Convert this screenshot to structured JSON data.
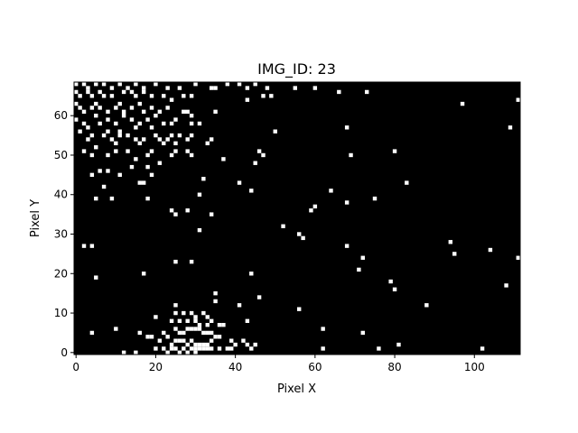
{
  "chart_data": {
    "type": "heatmap",
    "title": "IMG_ID: 23",
    "xlabel": "Pixel X",
    "ylabel": "Pixel Y",
    "xlim": [
      0,
      111
    ],
    "ylim": [
      0,
      68
    ],
    "xticks": [
      "0",
      "20",
      "40",
      "60",
      "80",
      "100"
    ],
    "yticks": [
      "0",
      "10",
      "20",
      "30",
      "40",
      "50",
      "60"
    ],
    "colormap": {
      "0": "#000000",
      "1": "#ffffff"
    },
    "grid": false,
    "points": [
      [
        0,
        68
      ],
      [
        2,
        68
      ],
      [
        3,
        67
      ],
      [
        5,
        68
      ],
      [
        7,
        68
      ],
      [
        9,
        67
      ],
      [
        11,
        68
      ],
      [
        13,
        67
      ],
      [
        15,
        68
      ],
      [
        17,
        67
      ],
      [
        20,
        68
      ],
      [
        23,
        67
      ],
      [
        26,
        67
      ],
      [
        30,
        68
      ],
      [
        34,
        67
      ],
      [
        35,
        67
      ],
      [
        38,
        68
      ],
      [
        41,
        68
      ],
      [
        43,
        67
      ],
      [
        45,
        68
      ],
      [
        48,
        67
      ],
      [
        55,
        67
      ],
      [
        60,
        67
      ],
      [
        66,
        66
      ],
      [
        73,
        66
      ],
      [
        0,
        66
      ],
      [
        1,
        65
      ],
      [
        3,
        66
      ],
      [
        4,
        65
      ],
      [
        6,
        66
      ],
      [
        7,
        65
      ],
      [
        9,
        65
      ],
      [
        12,
        66
      ],
      [
        14,
        66
      ],
      [
        15,
        65
      ],
      [
        17,
        66
      ],
      [
        19,
        65
      ],
      [
        22,
        65
      ],
      [
        24,
        64
      ],
      [
        27,
        65
      ],
      [
        29,
        65
      ],
      [
        43,
        64
      ],
      [
        47,
        65
      ],
      [
        49,
        65
      ],
      [
        97,
        63
      ],
      [
        111,
        64
      ],
      [
        0,
        63
      ],
      [
        1,
        62
      ],
      [
        2,
        61
      ],
      [
        4,
        62
      ],
      [
        5,
        63
      ],
      [
        6,
        62
      ],
      [
        8,
        61
      ],
      [
        10,
        62
      ],
      [
        11,
        63
      ],
      [
        12,
        61
      ],
      [
        14,
        62
      ],
      [
        16,
        63
      ],
      [
        17,
        61
      ],
      [
        19,
        62
      ],
      [
        20,
        60
      ],
      [
        21,
        61
      ],
      [
        23,
        62
      ],
      [
        27,
        61
      ],
      [
        28,
        61
      ],
      [
        29,
        60
      ],
      [
        35,
        61
      ],
      [
        0,
        59
      ],
      [
        2,
        58
      ],
      [
        3,
        57
      ],
      [
        5,
        60
      ],
      [
        6,
        58
      ],
      [
        8,
        59
      ],
      [
        10,
        58
      ],
      [
        11,
        56
      ],
      [
        12,
        60
      ],
      [
        14,
        59
      ],
      [
        15,
        57
      ],
      [
        16,
        58
      ],
      [
        18,
        59
      ],
      [
        19,
        57
      ],
      [
        22,
        58
      ],
      [
        24,
        58
      ],
      [
        25,
        59
      ],
      [
        29,
        58
      ],
      [
        31,
        58
      ],
      [
        50,
        56
      ],
      [
        68,
        57
      ],
      [
        109,
        57
      ],
      [
        1,
        56
      ],
      [
        3,
        54
      ],
      [
        4,
        55
      ],
      [
        7,
        55
      ],
      [
        8,
        56
      ],
      [
        9,
        54
      ],
      [
        10,
        53
      ],
      [
        11,
        55
      ],
      [
        13,
        55
      ],
      [
        15,
        54
      ],
      [
        16,
        53
      ],
      [
        17,
        54
      ],
      [
        20,
        55
      ],
      [
        21,
        54
      ],
      [
        22,
        53
      ],
      [
        23,
        54
      ],
      [
        24,
        55
      ],
      [
        25,
        53
      ],
      [
        26,
        55
      ],
      [
        28,
        54
      ],
      [
        29,
        55
      ],
      [
        33,
        53
      ],
      [
        34,
        54
      ],
      [
        46,
        51
      ],
      [
        80,
        51
      ],
      [
        2,
        51
      ],
      [
        4,
        50
      ],
      [
        5,
        52
      ],
      [
        8,
        50
      ],
      [
        10,
        51
      ],
      [
        13,
        51
      ],
      [
        15,
        49
      ],
      [
        18,
        50
      ],
      [
        19,
        51
      ],
      [
        21,
        48
      ],
      [
        24,
        50
      ],
      [
        25,
        51
      ],
      [
        28,
        51
      ],
      [
        29,
        50
      ],
      [
        37,
        49
      ],
      [
        47,
        50
      ],
      [
        45,
        48
      ],
      [
        69,
        50
      ],
      [
        4,
        45
      ],
      [
        6,
        46
      ],
      [
        8,
        46
      ],
      [
        11,
        45
      ],
      [
        14,
        47
      ],
      [
        16,
        43
      ],
      [
        17,
        43
      ],
      [
        18,
        47
      ],
      [
        19,
        45
      ],
      [
        32,
        44
      ],
      [
        41,
        43
      ],
      [
        83,
        43
      ],
      [
        5,
        39
      ],
      [
        7,
        42
      ],
      [
        9,
        39
      ],
      [
        18,
        39
      ],
      [
        31,
        40
      ],
      [
        44,
        41
      ],
      [
        64,
        41
      ],
      [
        68,
        38
      ],
      [
        75,
        39
      ],
      [
        24,
        36
      ],
      [
        25,
        35
      ],
      [
        28,
        36
      ],
      [
        34,
        35
      ],
      [
        59,
        36
      ],
      [
        60,
        37
      ],
      [
        52,
        32
      ],
      [
        31,
        31
      ],
      [
        56,
        30
      ],
      [
        57,
        29
      ],
      [
        68,
        27
      ],
      [
        94,
        28
      ],
      [
        2,
        27
      ],
      [
        4,
        27
      ],
      [
        72,
        24
      ],
      [
        95,
        25
      ],
      [
        104,
        26
      ],
      [
        111,
        24
      ],
      [
        25,
        23
      ],
      [
        29,
        23
      ],
      [
        17,
        20
      ],
      [
        44,
        20
      ],
      [
        71,
        21
      ],
      [
        5,
        19
      ],
      [
        79,
        18
      ],
      [
        80,
        16
      ],
      [
        108,
        17
      ],
      [
        35,
        15
      ],
      [
        35,
        13
      ],
      [
        46,
        14
      ],
      [
        88,
        12
      ],
      [
        41,
        12
      ],
      [
        56,
        11
      ],
      [
        25,
        12
      ],
      [
        25,
        10
      ],
      [
        27,
        10
      ],
      [
        29,
        10
      ],
      [
        30,
        9
      ],
      [
        32,
        10
      ],
      [
        33,
        9
      ],
      [
        34,
        8
      ],
      [
        20,
        9
      ],
      [
        24,
        8
      ],
      [
        26,
        8
      ],
      [
        28,
        8
      ],
      [
        30,
        8
      ],
      [
        31,
        7
      ],
      [
        33,
        7
      ],
      [
        36,
        7
      ],
      [
        37,
        7
      ],
      [
        43,
        8
      ],
      [
        10,
        6
      ],
      [
        16,
        5
      ],
      [
        4,
        5
      ],
      [
        18,
        4
      ],
      [
        19,
        4
      ],
      [
        22,
        5
      ],
      [
        23,
        4
      ],
      [
        25,
        6
      ],
      [
        26,
        5
      ],
      [
        27,
        5
      ],
      [
        28,
        6
      ],
      [
        29,
        6
      ],
      [
        30,
        6
      ],
      [
        31,
        6
      ],
      [
        32,
        5
      ],
      [
        33,
        5
      ],
      [
        34,
        5
      ],
      [
        35,
        4
      ],
      [
        36,
        4
      ],
      [
        62,
        6
      ],
      [
        72,
        5
      ],
      [
        21,
        3
      ],
      [
        24,
        2
      ],
      [
        25,
        3
      ],
      [
        26,
        3
      ],
      [
        27,
        3
      ],
      [
        28,
        2
      ],
      [
        29,
        3
      ],
      [
        30,
        2
      ],
      [
        31,
        2
      ],
      [
        32,
        2
      ],
      [
        33,
        2
      ],
      [
        34,
        3
      ],
      [
        39,
        3
      ],
      [
        40,
        2
      ],
      [
        42,
        3
      ],
      [
        43,
        2
      ],
      [
        20,
        1
      ],
      [
        22,
        1
      ],
      [
        24,
        1
      ],
      [
        25,
        1
      ],
      [
        27,
        1
      ],
      [
        29,
        1
      ],
      [
        30,
        1
      ],
      [
        31,
        1
      ],
      [
        32,
        1
      ],
      [
        33,
        1
      ],
      [
        34,
        1
      ],
      [
        36,
        1
      ],
      [
        38,
        1
      ],
      [
        39,
        1
      ],
      [
        44,
        1
      ],
      [
        45,
        2
      ],
      [
        12,
        0
      ],
      [
        15,
        0
      ],
      [
        23,
        0
      ],
      [
        26,
        0
      ],
      [
        28,
        0
      ],
      [
        30,
        0
      ],
      [
        62,
        1
      ],
      [
        76,
        1
      ],
      [
        81,
        2
      ],
      [
        102,
        1
      ]
    ]
  }
}
